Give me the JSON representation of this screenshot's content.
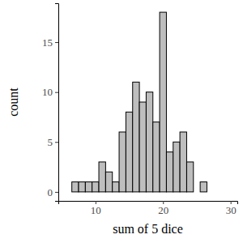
{
  "chart_data": {
    "type": "histogram",
    "x_label": "sum of 5 dice",
    "y_label": "count",
    "bins": [
      6.5,
      7.5,
      8.5,
      9.5,
      10.5,
      11.5,
      12.5,
      13.5,
      14.5,
      15.5,
      16.5,
      17.5,
      18.5,
      19.5,
      20.5,
      21.5,
      22.5,
      23.5,
      24.5,
      25.5,
      26.5
    ],
    "values": [
      1,
      1,
      1,
      1,
      3,
      2,
      1,
      6,
      8,
      11,
      9,
      10,
      7,
      18,
      4,
      5,
      6,
      3,
      0,
      1
    ],
    "color": "#bebebe",
    "xlim": [
      4.5,
      31
    ],
    "xticks": [
      10,
      20,
      30
    ],
    "ylim": [
      -0.9,
      18.9
    ],
    "yticks": [
      0,
      5,
      10,
      15
    ],
    "grid": false
  }
}
